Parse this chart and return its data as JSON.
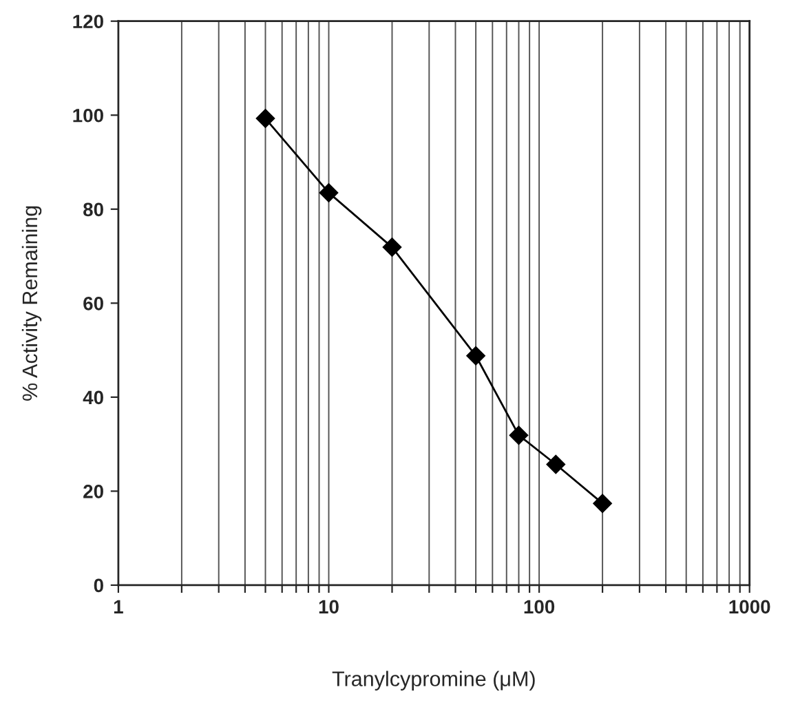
{
  "chart_data": {
    "type": "line",
    "xlabel": "Tranylcypromine (μM)",
    "ylabel": "% Activity Remaining",
    "x": [
      5,
      10,
      20,
      50,
      80,
      120,
      200
    ],
    "series": [
      {
        "color": "#000000",
        "values": [
          99.3,
          83.5,
          71.9,
          48.8,
          31.9,
          25.7,
          17.4
        ]
      }
    ],
    "log": "x",
    "xlim": [
      1,
      1000
    ],
    "ylim": [
      0,
      120
    ],
    "xticks": [
      1,
      {
        "value": 2,
        "label": null
      },
      {
        "value": 3,
        "label": null
      },
      {
        "value": 4,
        "label": null
      },
      {
        "value": 5,
        "label": null
      },
      {
        "value": 6,
        "label": null
      },
      {
        "value": 7,
        "label": null
      },
      {
        "value": 8,
        "label": null
      },
      {
        "value": 9,
        "label": null
      },
      10,
      {
        "value": 20,
        "label": null
      },
      {
        "value": 30,
        "label": null
      },
      {
        "value": 40,
        "label": null
      },
      {
        "value": 50,
        "label": null
      },
      {
        "value": 60,
        "label": null
      },
      {
        "value": 70,
        "label": null
      },
      {
        "value": 80,
        "label": null
      },
      {
        "value": 90,
        "label": null
      },
      100,
      {
        "value": 200,
        "label": null
      },
      {
        "value": 300,
        "label": null
      },
      {
        "value": 400,
        "label": null
      },
      {
        "value": 500,
        "label": null
      },
      {
        "value": 600,
        "label": null
      },
      {
        "value": 700,
        "label": null
      },
      {
        "value": 800,
        "label": null
      },
      {
        "value": 900,
        "label": null
      },
      1000
    ],
    "yticks": [
      0,
      20,
      40,
      60,
      80,
      100,
      120
    ],
    "grid": "x",
    "marker": "diamond",
    "line_style": "solid",
    "legend": false
  }
}
